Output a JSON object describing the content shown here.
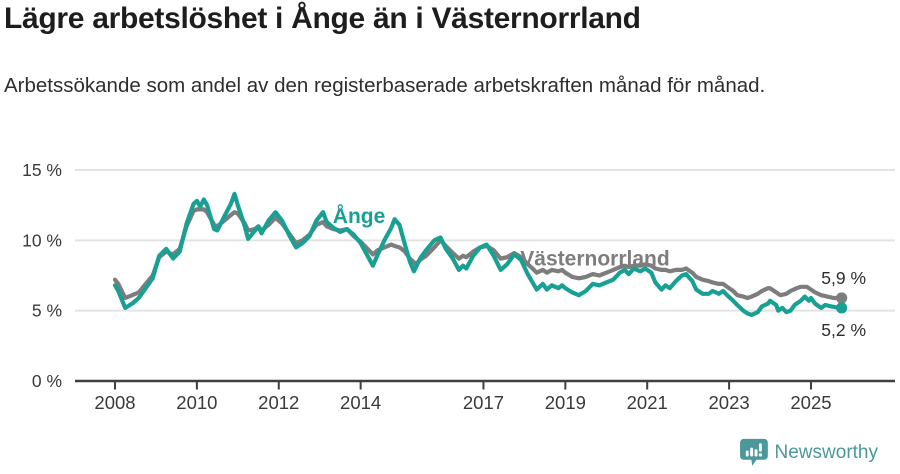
{
  "header": {
    "title": "Lägre arbetslöshet i Ånge än i Västernorrland",
    "subtitle": "Arbetssökande som andel av den registerbaserade arbetskraften månad för månad."
  },
  "footer": {
    "brand": "Newsworthy"
  },
  "colors": {
    "ange": "#17a093",
    "vasternorrland": "#7d7d7d",
    "axis": "#3f3f3f",
    "gridline": "#e3e3e3",
    "tick_text": "#3a3a3a",
    "brand_teal": "#4b989b"
  },
  "chart_data": {
    "type": "line",
    "title": "Lägre arbetslöshet i Ånge än i Västernorrland",
    "xlabel": "",
    "ylabel": "",
    "ylim": [
      0,
      15
    ],
    "xlim": [
      2007.8,
      2026.1
    ],
    "grid": "horizontal",
    "legend_position": "inline-labels",
    "y_ticks": [
      {
        "value": 15,
        "label": "15 %"
      },
      {
        "value": 10,
        "label": "10 %"
      },
      {
        "value": 5,
        "label": "5 %"
      },
      {
        "value": 0,
        "label": "0 %"
      }
    ],
    "x_ticks": [
      {
        "value": 2008,
        "label": "2008"
      },
      {
        "value": 2010,
        "label": "2010"
      },
      {
        "value": 2012,
        "label": "2012"
      },
      {
        "value": 2014,
        "label": "2014"
      },
      {
        "value": 2017,
        "label": "2017"
      },
      {
        "value": 2019,
        "label": "2019"
      },
      {
        "value": 2021,
        "label": "2021"
      },
      {
        "value": 2023,
        "label": "2023"
      },
      {
        "value": 2025,
        "label": "2025"
      }
    ],
    "series": [
      {
        "name": "Västernorrland",
        "color": "#7d7d7d",
        "end_label": "5,9 %",
        "label_anchor": [
          2017.9,
          8.2
        ],
        "points": [
          [
            2008.0,
            7.2
          ],
          [
            2008.08,
            6.9
          ],
          [
            2008.25,
            5.9
          ],
          [
            2008.42,
            6.1
          ],
          [
            2008.58,
            6.3
          ],
          [
            2008.75,
            6.9
          ],
          [
            2008.92,
            7.5
          ],
          [
            2009.08,
            8.8
          ],
          [
            2009.25,
            9.2
          ],
          [
            2009.42,
            9.0
          ],
          [
            2009.58,
            9.4
          ],
          [
            2009.75,
            11.0
          ],
          [
            2009.92,
            12.1
          ],
          [
            2010.0,
            12.2
          ],
          [
            2010.17,
            12.2
          ],
          [
            2010.25,
            12.0
          ],
          [
            2010.42,
            11.1
          ],
          [
            2010.5,
            11.0
          ],
          [
            2010.67,
            11.4
          ],
          [
            2010.83,
            11.8
          ],
          [
            2010.92,
            12.0
          ],
          [
            2011.0,
            11.9
          ],
          [
            2011.17,
            11.2
          ],
          [
            2011.25,
            10.7
          ],
          [
            2011.42,
            10.8
          ],
          [
            2011.5,
            11.0
          ],
          [
            2011.58,
            10.7
          ],
          [
            2011.75,
            11.1
          ],
          [
            2011.92,
            11.6
          ],
          [
            2012.08,
            11.2
          ],
          [
            2012.25,
            10.5
          ],
          [
            2012.42,
            9.8
          ],
          [
            2012.58,
            10.0
          ],
          [
            2012.75,
            10.4
          ],
          [
            2012.92,
            11.1
          ],
          [
            2013.08,
            11.3
          ],
          [
            2013.17,
            11.0
          ],
          [
            2013.33,
            10.8
          ],
          [
            2013.5,
            10.7
          ],
          [
            2013.67,
            10.8
          ],
          [
            2013.83,
            10.3
          ],
          [
            2014.0,
            9.9
          ],
          [
            2014.17,
            9.4
          ],
          [
            2014.3,
            9.0
          ],
          [
            2014.42,
            9.3
          ],
          [
            2014.58,
            9.5
          ],
          [
            2014.75,
            9.7
          ],
          [
            2014.83,
            9.6
          ],
          [
            2014.95,
            9.5
          ],
          [
            2015.08,
            9.2
          ],
          [
            2015.2,
            8.7
          ],
          [
            2015.35,
            8.3
          ],
          [
            2015.45,
            8.6
          ],
          [
            2015.6,
            8.9
          ],
          [
            2015.8,
            9.5
          ],
          [
            2015.95,
            10.0
          ],
          [
            2016.08,
            9.6
          ],
          [
            2016.25,
            9.1
          ],
          [
            2016.4,
            8.7
          ],
          [
            2016.5,
            8.9
          ],
          [
            2016.58,
            8.8
          ],
          [
            2016.75,
            9.2
          ],
          [
            2016.92,
            9.5
          ],
          [
            2017.08,
            9.6
          ],
          [
            2017.25,
            9.3
          ],
          [
            2017.42,
            8.7
          ],
          [
            2017.58,
            8.8
          ],
          [
            2017.75,
            9.1
          ],
          [
            2017.92,
            8.8
          ],
          [
            2018.08,
            8.3
          ],
          [
            2018.2,
            8.0
          ],
          [
            2018.3,
            7.7
          ],
          [
            2018.45,
            7.9
          ],
          [
            2018.55,
            7.7
          ],
          [
            2018.67,
            7.9
          ],
          [
            2018.83,
            7.8
          ],
          [
            2018.92,
            7.9
          ],
          [
            2019.0,
            7.7
          ],
          [
            2019.17,
            7.4
          ],
          [
            2019.33,
            7.3
          ],
          [
            2019.5,
            7.4
          ],
          [
            2019.67,
            7.6
          ],
          [
            2019.83,
            7.5
          ],
          [
            2020.0,
            7.7
          ],
          [
            2020.17,
            7.9
          ],
          [
            2020.33,
            8.1
          ],
          [
            2020.45,
            8.2
          ],
          [
            2020.55,
            8.1
          ],
          [
            2020.67,
            8.2
          ],
          [
            2020.83,
            8.2
          ],
          [
            2020.95,
            8.3
          ],
          [
            2021.1,
            8.2
          ],
          [
            2021.2,
            8.0
          ],
          [
            2021.35,
            7.9
          ],
          [
            2021.45,
            7.9
          ],
          [
            2021.55,
            7.8
          ],
          [
            2021.7,
            7.9
          ],
          [
            2021.85,
            7.9
          ],
          [
            2021.95,
            8.0
          ],
          [
            2022.1,
            7.7
          ],
          [
            2022.2,
            7.4
          ],
          [
            2022.35,
            7.2
          ],
          [
            2022.5,
            7.1
          ],
          [
            2022.6,
            7.0
          ],
          [
            2022.75,
            6.9
          ],
          [
            2022.85,
            6.9
          ],
          [
            2022.95,
            6.7
          ],
          [
            2023.1,
            6.4
          ],
          [
            2023.2,
            6.1
          ],
          [
            2023.35,
            6.0
          ],
          [
            2023.45,
            5.9
          ],
          [
            2023.55,
            6.0
          ],
          [
            2023.7,
            6.2
          ],
          [
            2023.8,
            6.4
          ],
          [
            2023.95,
            6.6
          ],
          [
            2024.0,
            6.6
          ],
          [
            2024.15,
            6.3
          ],
          [
            2024.25,
            6.1
          ],
          [
            2024.4,
            6.2
          ],
          [
            2024.5,
            6.4
          ],
          [
            2024.65,
            6.6
          ],
          [
            2024.75,
            6.7
          ],
          [
            2024.9,
            6.7
          ],
          [
            2025.0,
            6.5
          ],
          [
            2025.1,
            6.3
          ],
          [
            2025.25,
            6.1
          ],
          [
            2025.4,
            6.0
          ],
          [
            2025.55,
            5.9
          ],
          [
            2025.7,
            5.9
          ]
        ]
      },
      {
        "name": "Ånge",
        "color": "#17a093",
        "end_label": "5,2 %",
        "label_anchor": [
          2013.32,
          11.25
        ],
        "points": [
          [
            2008.0,
            6.8
          ],
          [
            2008.08,
            6.4
          ],
          [
            2008.25,
            5.2
          ],
          [
            2008.42,
            5.5
          ],
          [
            2008.58,
            5.9
          ],
          [
            2008.75,
            6.6
          ],
          [
            2008.92,
            7.3
          ],
          [
            2009.08,
            8.9
          ],
          [
            2009.25,
            9.4
          ],
          [
            2009.42,
            8.7
          ],
          [
            2009.58,
            9.2
          ],
          [
            2009.75,
            11.2
          ],
          [
            2009.92,
            12.6
          ],
          [
            2010.0,
            12.8
          ],
          [
            2010.08,
            12.4
          ],
          [
            2010.17,
            12.9
          ],
          [
            2010.25,
            12.5
          ],
          [
            2010.42,
            10.8
          ],
          [
            2010.5,
            10.7
          ],
          [
            2010.67,
            11.7
          ],
          [
            2010.83,
            12.6
          ],
          [
            2010.92,
            13.3
          ],
          [
            2011.0,
            12.5
          ],
          [
            2011.17,
            11.0
          ],
          [
            2011.25,
            10.1
          ],
          [
            2011.42,
            10.7
          ],
          [
            2011.5,
            11.0
          ],
          [
            2011.58,
            10.5
          ],
          [
            2011.75,
            11.4
          ],
          [
            2011.92,
            12.0
          ],
          [
            2012.08,
            11.4
          ],
          [
            2012.25,
            10.4
          ],
          [
            2012.42,
            9.5
          ],
          [
            2012.58,
            9.8
          ],
          [
            2012.75,
            10.3
          ],
          [
            2012.92,
            11.4
          ],
          [
            2013.08,
            12.0
          ],
          [
            2013.17,
            11.3
          ],
          [
            2013.33,
            10.9
          ],
          [
            2013.5,
            10.6
          ],
          [
            2013.67,
            10.8
          ],
          [
            2013.83,
            10.4
          ],
          [
            2014.0,
            9.8
          ],
          [
            2014.17,
            8.9
          ],
          [
            2014.3,
            8.2
          ],
          [
            2014.42,
            9.0
          ],
          [
            2014.58,
            10.0
          ],
          [
            2014.75,
            10.9
          ],
          [
            2014.83,
            11.5
          ],
          [
            2014.95,
            11.1
          ],
          [
            2015.08,
            9.7
          ],
          [
            2015.2,
            8.5
          ],
          [
            2015.3,
            7.8
          ],
          [
            2015.45,
            8.7
          ],
          [
            2015.6,
            9.3
          ],
          [
            2015.8,
            10.0
          ],
          [
            2015.95,
            10.2
          ],
          [
            2016.08,
            9.4
          ],
          [
            2016.25,
            8.7
          ],
          [
            2016.4,
            7.9
          ],
          [
            2016.5,
            8.2
          ],
          [
            2016.58,
            8.0
          ],
          [
            2016.75,
            8.9
          ],
          [
            2016.92,
            9.5
          ],
          [
            2017.08,
            9.7
          ],
          [
            2017.25,
            8.9
          ],
          [
            2017.42,
            7.9
          ],
          [
            2017.58,
            8.3
          ],
          [
            2017.75,
            9.0
          ],
          [
            2017.92,
            8.6
          ],
          [
            2018.08,
            7.6
          ],
          [
            2018.2,
            7.0
          ],
          [
            2018.3,
            6.5
          ],
          [
            2018.45,
            6.9
          ],
          [
            2018.55,
            6.5
          ],
          [
            2018.67,
            6.8
          ],
          [
            2018.83,
            6.6
          ],
          [
            2018.92,
            6.8
          ],
          [
            2019.0,
            6.6
          ],
          [
            2019.17,
            6.3
          ],
          [
            2019.33,
            6.1
          ],
          [
            2019.5,
            6.4
          ],
          [
            2019.67,
            6.9
          ],
          [
            2019.83,
            6.8
          ],
          [
            2020.0,
            7.0
          ],
          [
            2020.17,
            7.2
          ],
          [
            2020.33,
            7.7
          ],
          [
            2020.45,
            7.9
          ],
          [
            2020.55,
            7.6
          ],
          [
            2020.67,
            8.0
          ],
          [
            2020.83,
            7.8
          ],
          [
            2020.95,
            8.0
          ],
          [
            2021.1,
            7.7
          ],
          [
            2021.2,
            7.0
          ],
          [
            2021.35,
            6.5
          ],
          [
            2021.45,
            6.8
          ],
          [
            2021.55,
            6.6
          ],
          [
            2021.7,
            7.1
          ],
          [
            2021.85,
            7.5
          ],
          [
            2021.95,
            7.6
          ],
          [
            2022.1,
            7.1
          ],
          [
            2022.2,
            6.5
          ],
          [
            2022.35,
            6.2
          ],
          [
            2022.5,
            6.2
          ],
          [
            2022.6,
            6.4
          ],
          [
            2022.75,
            6.2
          ],
          [
            2022.85,
            6.4
          ],
          [
            2022.95,
            6.1
          ],
          [
            2023.1,
            5.7
          ],
          [
            2023.2,
            5.4
          ],
          [
            2023.35,
            5.0
          ],
          [
            2023.45,
            4.8
          ],
          [
            2023.55,
            4.7
          ],
          [
            2023.7,
            4.9
          ],
          [
            2023.8,
            5.3
          ],
          [
            2023.95,
            5.5
          ],
          [
            2024.0,
            5.7
          ],
          [
            2024.15,
            5.4
          ],
          [
            2024.2,
            5.0
          ],
          [
            2024.3,
            5.2
          ],
          [
            2024.4,
            4.9
          ],
          [
            2024.5,
            5.0
          ],
          [
            2024.6,
            5.4
          ],
          [
            2024.75,
            5.7
          ],
          [
            2024.85,
            6.0
          ],
          [
            2024.95,
            5.7
          ],
          [
            2025.0,
            5.9
          ],
          [
            2025.1,
            5.5
          ],
          [
            2025.25,
            5.2
          ],
          [
            2025.35,
            5.4
          ],
          [
            2025.5,
            5.3
          ],
          [
            2025.7,
            5.2
          ]
        ]
      }
    ]
  }
}
